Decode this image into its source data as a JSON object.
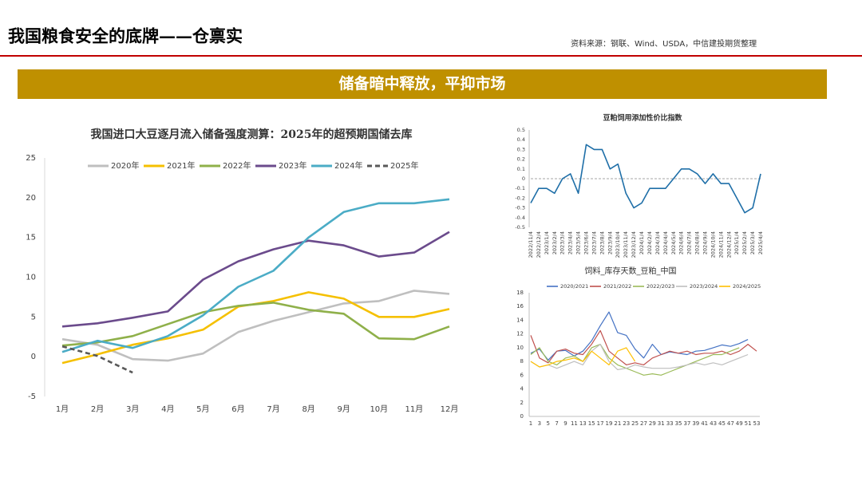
{
  "header": {
    "title": "我国粮食安全的底牌——仓禀实",
    "source": "资料来源：钢联、Wind、USDA，中信建投期货整理"
  },
  "banner": "储备暗中释放，平抑市场",
  "chart_data": [
    {
      "type": "line",
      "title": "我国进口大豆逐月流入储备强度测算：2025年的超预期国储去库",
      "categories": [
        "1月",
        "2月",
        "3月",
        "4月",
        "5月",
        "6月",
        "7月",
        "8月",
        "9月",
        "10月",
        "11月",
        "12月"
      ],
      "ylim": [
        -5,
        25
      ],
      "yticks": [
        -5,
        0,
        5,
        10,
        15,
        20,
        25
      ],
      "grid": false,
      "legend": "top",
      "series": [
        {
          "name": "2020年",
          "color": "#bfbfbf",
          "values": [
            2.2,
            1.5,
            -0.3,
            -0.5,
            0.4,
            3.1,
            4.5,
            5.6,
            6.7,
            7.0,
            8.3,
            7.9
          ]
        },
        {
          "name": "2021年",
          "color": "#f5c000",
          "values": [
            -0.8,
            0.3,
            1.5,
            2.3,
            3.4,
            6.3,
            7.0,
            8.1,
            7.3,
            5.0,
            5.0,
            6.0
          ]
        },
        {
          "name": "2022年",
          "color": "#8fb04a",
          "values": [
            1.4,
            1.8,
            2.6,
            4.1,
            5.6,
            6.4,
            6.8,
            5.9,
            5.4,
            2.3,
            2.2,
            3.8
          ]
        },
        {
          "name": "2023年",
          "color": "#6b4b8c",
          "values": [
            3.8,
            4.2,
            4.9,
            5.7,
            9.7,
            12.0,
            13.5,
            14.6,
            14.0,
            12.6,
            13.1,
            15.7
          ]
        },
        {
          "name": "2024年",
          "color": "#4bacc6",
          "values": [
            0.6,
            2.0,
            1.1,
            2.6,
            5.2,
            8.8,
            10.8,
            15.0,
            18.2,
            19.3,
            19.3,
            19.8
          ]
        },
        {
          "name": "2025年",
          "color": "#595959",
          "style": "dashed",
          "values": [
            1.3,
            0.1,
            -2.0,
            null,
            null,
            null,
            null,
            null,
            null,
            null,
            null,
            null
          ]
        }
      ]
    },
    {
      "type": "line",
      "title": "豆粕饲用添加性价比指数",
      "categories": [
        "2022/11/4",
        "2022/12/4",
        "2023/1/4",
        "2023/2/4",
        "2023/3/4",
        "2023/4/4",
        "2023/5/4",
        "2023/6/4",
        "2023/7/4",
        "2023/8/4",
        "2023/9/4",
        "2023/10/4",
        "2023/11/4",
        "2023/12/4",
        "2024/1/4",
        "2024/2/4",
        "2024/3/4",
        "2024/4/4",
        "2024/5/4",
        "2024/6/4",
        "2024/7/4",
        "2024/8/4",
        "2024/9/4",
        "2024/10/4",
        "2024/11/4",
        "2024/12/4",
        "2025/1/4",
        "2025/2/4",
        "2025/3/4",
        "2025/4/4"
      ],
      "ylim": [
        -0.5,
        0.5
      ],
      "yticks": [
        -0.5,
        -0.4,
        -0.3,
        -0.2,
        -0.1,
        0,
        0.1,
        0.2,
        0.3,
        0.4,
        0.5
      ],
      "grid": false,
      "series": [
        {
          "name": "豆粕饲用添加性价比指数",
          "color": "#1f6fa8",
          "values": [
            -0.25,
            -0.1,
            -0.1,
            -0.15,
            0,
            0.05,
            -0.15,
            0.35,
            0.3,
            0.3,
            0.1,
            0.15,
            -0.15,
            -0.3,
            -0.25,
            -0.1,
            -0.1,
            -0.1,
            0.0,
            0.1,
            0.1,
            0.05,
            -0.05,
            0.05,
            -0.05,
            -0.05,
            -0.2,
            -0.35,
            -0.3,
            0.05
          ]
        }
      ]
    },
    {
      "type": "line",
      "title": "饲料_库存天数_豆粕_中国",
      "x": [
        1,
        3,
        5,
        7,
        9,
        11,
        13,
        15,
        17,
        19,
        21,
        23,
        25,
        27,
        29,
        31,
        33,
        35,
        37,
        39,
        41,
        43,
        45,
        47,
        49,
        51,
        53
      ],
      "xlim": [
        1,
        53
      ],
      "xticks": [
        1,
        3,
        5,
        7,
        9,
        11,
        13,
        15,
        17,
        19,
        21,
        23,
        25,
        27,
        29,
        31,
        33,
        35,
        37,
        39,
        41,
        43,
        45,
        47,
        49,
        51,
        53
      ],
      "ylim": [
        0,
        18
      ],
      "yticks": [
        0,
        2,
        4,
        6,
        8,
        10,
        12,
        14,
        16,
        18
      ],
      "grid": false,
      "legend": "top",
      "series": [
        {
          "name": "2020/2021",
          "color": "#4472c4",
          "values": [
            9.2,
            9.8,
            8.2,
            9.5,
            9.6,
            8.8,
            9.5,
            11.0,
            13.2,
            15.2,
            12.2,
            11.8,
            9.8,
            8.5,
            10.5,
            9.0,
            9.4,
            9.2,
            9.0,
            9.5,
            9.6,
            10.0,
            10.4,
            10.2,
            10.6,
            11.2,
            null
          ]
        },
        {
          "name": "2021/2022",
          "color": "#c0504d",
          "values": [
            11.8,
            8.5,
            7.8,
            9.5,
            9.8,
            9.2,
            9.0,
            10.5,
            12.5,
            9.5,
            8.5,
            7.5,
            7.8,
            7.5,
            8.5,
            9.0,
            9.5,
            9.2,
            9.5,
            9.0,
            9.2,
            9.2,
            9.5,
            9.0,
            9.5,
            10.5,
            9.5
          ]
        },
        {
          "name": "2022/2023",
          "color": "#9bbb59",
          "values": [
            9.0,
            10.0,
            8.0,
            7.5,
            8.5,
            8.8,
            8.0,
            10.0,
            10.5,
            8.5,
            7.5,
            7.0,
            6.5,
            6.0,
            6.2,
            6.0,
            6.5,
            7.0,
            7.5,
            8.0,
            8.5,
            9.0,
            9.0,
            9.5,
            10.0,
            null,
            null
          ]
        },
        {
          "name": "2023/2024",
          "color": "#bfbfbf",
          "values": [
            8.0,
            7.2,
            7.5,
            7.0,
            7.5,
            8.0,
            7.5,
            9.5,
            10.5,
            8.0,
            6.8,
            7.0,
            7.5,
            7.2,
            7.0,
            7.0,
            7.0,
            7.2,
            7.5,
            7.8,
            7.5,
            7.8,
            7.5,
            8.0,
            8.5,
            9.0,
            null
          ]
        },
        {
          "name": "2024/2025",
          "color": "#ffc000",
          "values": [
            8.0,
            7.2,
            7.5,
            8.0,
            8.2,
            8.5,
            8.0,
            9.5,
            8.5,
            7.5,
            9.5,
            10.0,
            8.0,
            null,
            null,
            null,
            null,
            null,
            null,
            null,
            null,
            null,
            null,
            null,
            null,
            null,
            null
          ]
        }
      ]
    }
  ]
}
